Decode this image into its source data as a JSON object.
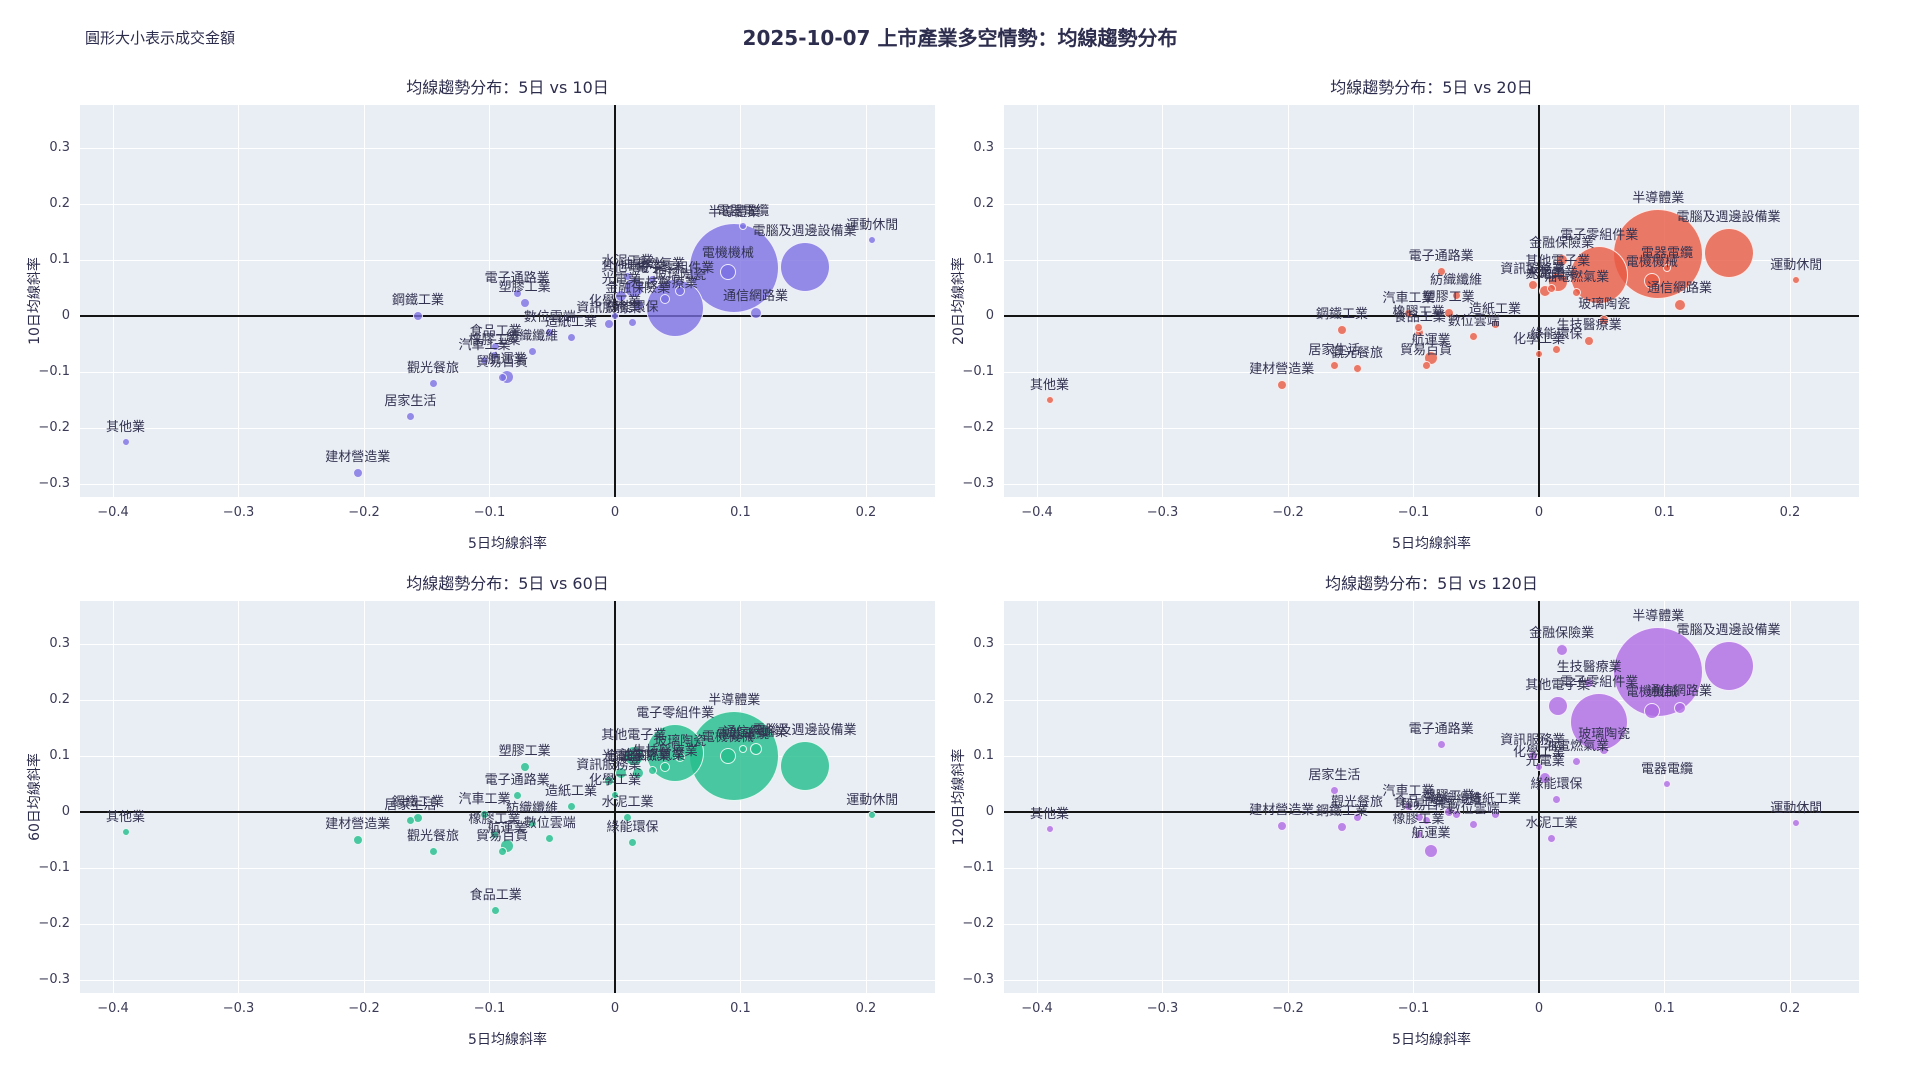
{
  "page": {
    "suptitle": "2025-10-07 上市產業多空情勢：均線趨勢分布",
    "size_note": "圓形大小表示成交金額"
  },
  "chart_data": {
    "type": "scatter",
    "subtype": "bubble",
    "bubble_size_meaning": "成交金額",
    "x_label": "5日均線斜率",
    "x_ticks": {
      "values": [
        -0.4,
        -0.3,
        -0.2,
        -0.1,
        0,
        0.1,
        0.2
      ],
      "labels": [
        "−0.4",
        "−0.3",
        "−0.2",
        "−0.1",
        "0",
        "0.1",
        "0.2"
      ]
    },
    "y_ticks": {
      "values": [
        0.3,
        0.2,
        0.1,
        0,
        -0.1,
        -0.2,
        -0.3
      ],
      "labels": [
        "0.3",
        "0.2",
        "0.1",
        "0",
        "−0.1",
        "−0.2",
        "−0.3"
      ]
    },
    "x_range": [
      -0.426,
      0.255
    ],
    "y_range": [
      -0.323,
      0.377
    ],
    "grid": "white on light blue-gray panel",
    "charts": [
      {
        "id": "5v10",
        "title": "均線趨勢分布：5日 vs 10日",
        "y_label": "10日均線斜率",
        "y_key": "y10",
        "fill": "rgba(122,110,226,0.78)"
      },
      {
        "id": "5v20",
        "title": "均線趨勢分布：5日 vs 20日",
        "y_label": "20日均線斜率",
        "y_key": "y20",
        "fill": "rgba(233,90,68,0.8)"
      },
      {
        "id": "5v60",
        "title": "均線趨勢分布：5日 vs 60日",
        "y_label": "60日均線斜率",
        "y_key": "y60",
        "fill": "rgba(38,190,142,0.82)"
      },
      {
        "id": "5v120",
        "title": "均線趨勢分布：5日 vs 120日",
        "y_label": "120日均線斜率",
        "y_key": "y120",
        "fill": "rgba(174,106,227,0.8)"
      }
    ],
    "industries": [
      {
        "name": "半導體業",
        "x": 0.095,
        "y10": 0.085,
        "y20": 0.11,
        "y60": 0.1,
        "y120": 0.25,
        "size": 45
      },
      {
        "name": "電腦及週邊設備業",
        "x": 0.151,
        "y10": 0.088,
        "y20": 0.113,
        "y60": 0.082,
        "y120": 0.26,
        "size": 25
      },
      {
        "name": "電子零組件業",
        "x": 0.048,
        "y10": 0.015,
        "y20": 0.073,
        "y60": 0.105,
        "y120": 0.16,
        "size": 29
      },
      {
        "name": "電機機械",
        "x": 0.09,
        "y10": 0.079,
        "y20": 0.063,
        "y60": 0.1,
        "y120": 0.18,
        "size": 8
      },
      {
        "name": "電器電纜",
        "x": 0.102,
        "y10": 0.16,
        "y20": 0.085,
        "y60": 0.112,
        "y120": 0.05,
        "size": 4
      },
      {
        "name": "通信網路業",
        "x": 0.112,
        "y10": 0.005,
        "y20": 0.02,
        "y60": 0.112,
        "y120": 0.185,
        "size": 6
      },
      {
        "name": "運動休閒",
        "x": 0.205,
        "y10": 0.135,
        "y20": 0.064,
        "y60": -0.005,
        "y120": -0.02,
        "size": 4
      },
      {
        "name": "金融保險業",
        "x": 0.018,
        "y10": 0.02,
        "y20": 0.1,
        "y60": 0.07,
        "y120": 0.29,
        "size": 6
      },
      {
        "name": "其他電子業",
        "x": 0.015,
        "y10": 0.05,
        "y20": 0.06,
        "y60": 0.1,
        "y120": 0.19,
        "size": 10
      },
      {
        "name": "光電業",
        "x": 0.005,
        "y10": 0.035,
        "y20": 0.045,
        "y60": 0.07,
        "y120": 0.06,
        "size": 6
      },
      {
        "name": "生技醫療業",
        "x": 0.04,
        "y10": 0.03,
        "y20": -0.045,
        "y60": 0.08,
        "y120": 0.23,
        "size": 5
      },
      {
        "name": "玻璃陶瓷",
        "x": 0.052,
        "y10": 0.045,
        "y20": -0.007,
        "y60": 0.098,
        "y120": 0.11,
        "size": 5
      },
      {
        "name": "油電燃氣業",
        "x": 0.03,
        "y10": 0.065,
        "y20": 0.042,
        "y60": 0.075,
        "y120": 0.09,
        "size": 4.5
      },
      {
        "name": "水泥工業",
        "x": 0.01,
        "y10": 0.07,
        "y20": 0.05,
        "y60": -0.01,
        "y120": -0.048,
        "size": 4.5
      },
      {
        "name": "資訊服務業",
        "x": -0.005,
        "y10": -0.015,
        "y20": 0.055,
        "y60": 0.055,
        "y120": 0.1,
        "size": 5
      },
      {
        "name": "綠能環保",
        "x": 0.014,
        "y10": -0.011,
        "y20": -0.06,
        "y60": -0.054,
        "y120": 0.023,
        "size": 4.5
      },
      {
        "name": "化學工業",
        "x": 0.0,
        "y10": 0.0,
        "y20": -0.068,
        "y60": 0.03,
        "y120": 0.08,
        "size": 4
      },
      {
        "name": "電子通路業",
        "x": -0.078,
        "y10": 0.04,
        "y20": 0.08,
        "y60": 0.03,
        "y120": 0.121,
        "size": 4.5
      },
      {
        "name": "塑膠工業",
        "x": -0.072,
        "y10": 0.023,
        "y20": 0.005,
        "y60": 0.08,
        "y120": 0.0,
        "size": 5
      },
      {
        "name": "數位雲端",
        "x": -0.052,
        "y10": -0.03,
        "y20": -0.036,
        "y60": -0.048,
        "y120": -0.023,
        "size": 4.5
      },
      {
        "name": "造紙工業",
        "x": -0.035,
        "y10": -0.038,
        "y20": -0.016,
        "y60": 0.01,
        "y120": -0.004,
        "size": 4.5
      },
      {
        "name": "食品工業",
        "x": -0.095,
        "y10": -0.055,
        "y20": -0.03,
        "y60": -0.175,
        "y120": -0.01,
        "size": 4.5
      },
      {
        "name": "紡織纖維",
        "x": -0.066,
        "y10": -0.063,
        "y20": 0.036,
        "y60": -0.02,
        "y120": -0.005,
        "size": 4.5
      },
      {
        "name": "橡膠工業",
        "x": -0.096,
        "y10": -0.07,
        "y20": -0.02,
        "y60": -0.04,
        "y120": -0.04,
        "size": 4.5
      },
      {
        "name": "汽車工業",
        "x": -0.104,
        "y10": -0.08,
        "y20": 0.005,
        "y60": -0.005,
        "y120": 0.01,
        "size": 4.5
      },
      {
        "name": "貿易百貨",
        "x": -0.09,
        "y10": -0.109,
        "y20": -0.0875,
        "y60": -0.07,
        "y120": -0.015,
        "size": 4.5
      },
      {
        "name": "航運業",
        "x": -0.086,
        "y10": -0.109,
        "y20": -0.075,
        "y60": -0.06,
        "y120": -0.07,
        "size": 7
      },
      {
        "name": "觀光餐旅",
        "x": -0.145,
        "y10": -0.12,
        "y20": -0.093,
        "y60": -0.07,
        "y120": -0.01,
        "size": 4.5
      },
      {
        "name": "鋼鐵工業",
        "x": -0.157,
        "y10": 0.0,
        "y20": -0.025,
        "y60": -0.01,
        "y120": -0.027,
        "size": 5
      },
      {
        "name": "居家生活",
        "x": -0.163,
        "y10": -0.18,
        "y20": -0.089,
        "y60": -0.016,
        "y120": 0.038,
        "size": 4.5
      },
      {
        "name": "建材營造業",
        "x": -0.205,
        "y10": -0.28,
        "y20": -0.123,
        "y60": -0.05,
        "y120": -0.025,
        "size": 5
      },
      {
        "name": "其他業",
        "x": -0.39,
        "y10": -0.225,
        "y20": -0.15,
        "y60": -0.035,
        "y120": -0.03,
        "size": 4
      }
    ]
  }
}
